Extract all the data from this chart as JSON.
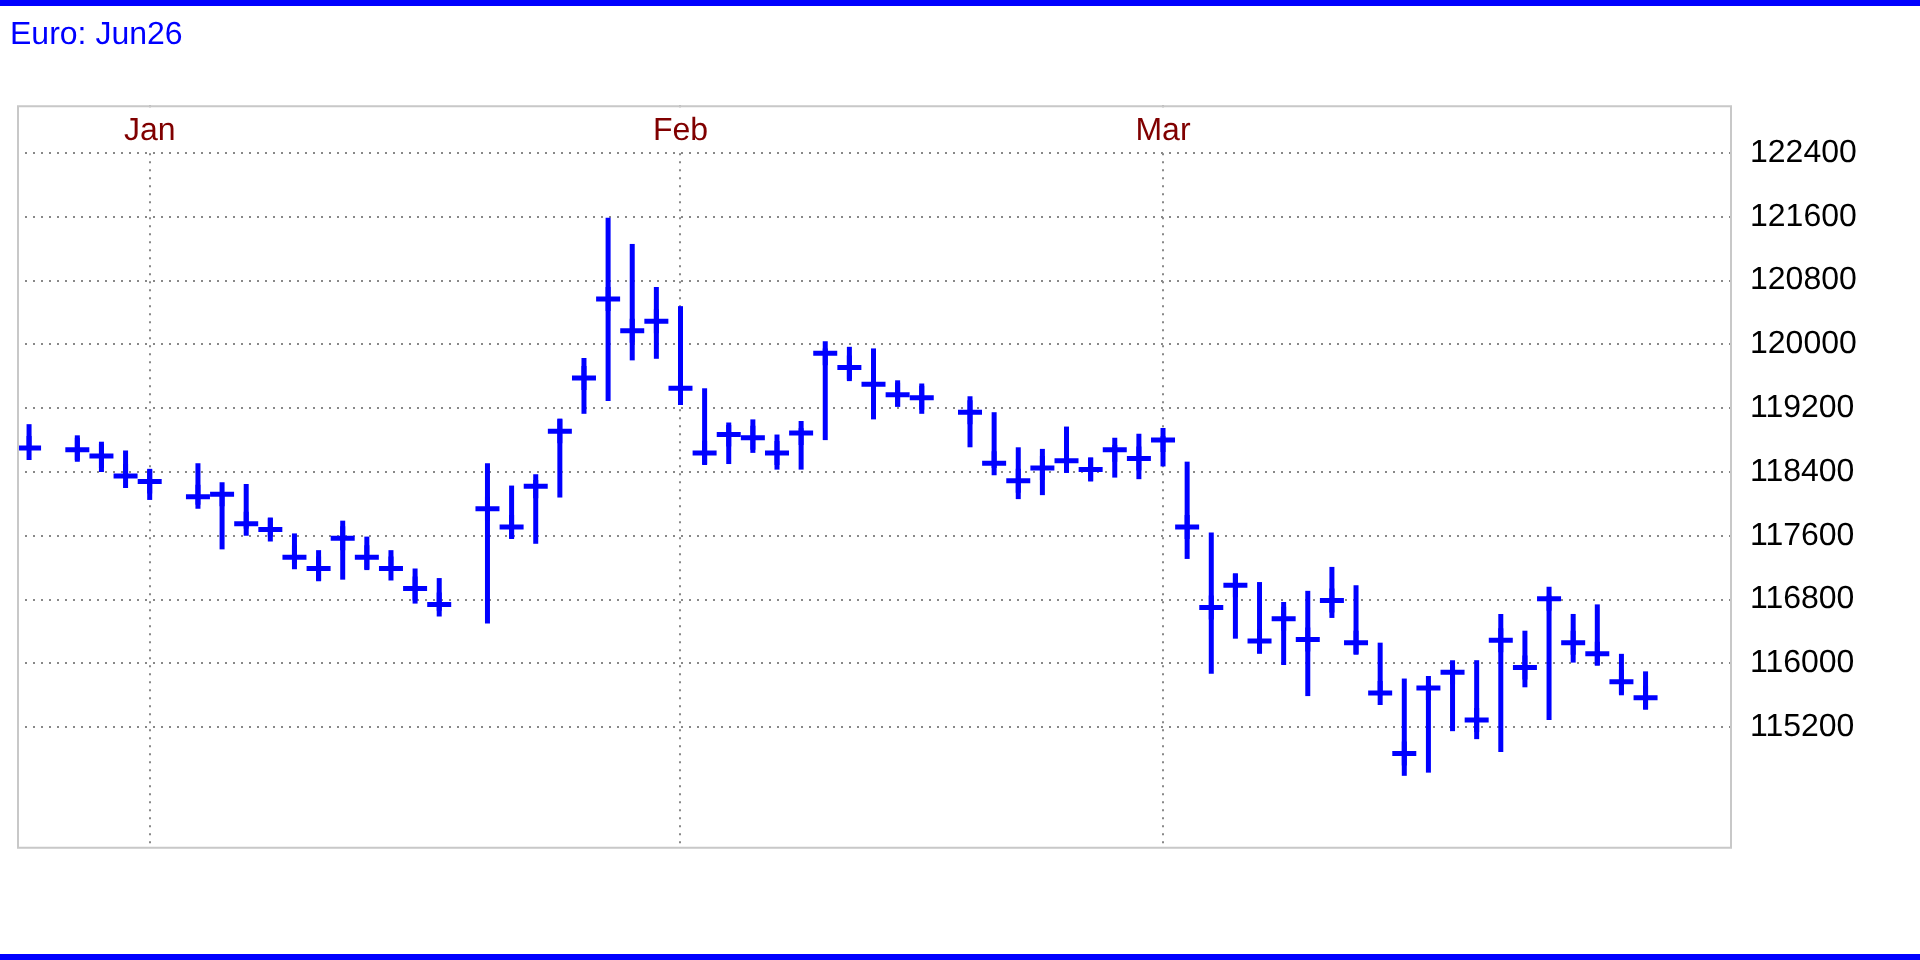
{
  "chart_data": {
    "type": "scatter",
    "title": "Euro: Jun26",
    "grid": true,
    "marker": "cross",
    "color": "#0000ff",
    "categories": [
      null,
      null,
      null,
      null,
      null,
      "Jan",
      null,
      null,
      null,
      null,
      null,
      null,
      null,
      null,
      null,
      null,
      null,
      null,
      null,
      null,
      null,
      null,
      null,
      null,
      null,
      null,
      null,
      "Feb",
      null,
      null,
      null,
      null,
      null,
      null,
      null,
      null,
      null,
      null,
      null,
      null,
      null,
      null,
      null,
      null,
      null,
      null,
      null,
      "Mar",
      null,
      null,
      null,
      null,
      null,
      null,
      null,
      null,
      null,
      null,
      null,
      null,
      null,
      null,
      null,
      null,
      null,
      null,
      null,
      null,
      null,
      null,
      null
    ],
    "values": [
      118700,
      null,
      118680,
      118600,
      118350,
      118280,
      null,
      118090,
      118120,
      117750,
      117680,
      117330,
      117190,
      117570,
      117330,
      117190,
      116940,
      116740,
      null,
      117940,
      117710,
      118220,
      118910,
      119580,
      120570,
      120170,
      120290,
      119450,
      118640,
      118870,
      118830,
      118640,
      118890,
      119890,
      119710,
      119500,
      119370,
      119330,
      null,
      119150,
      118510,
      118290,
      118450,
      118540,
      118430,
      118680,
      118570,
      118800,
      117710,
      116700,
      116980,
      116280,
      116560,
      116300,
      116790,
      116260,
      115630,
      114870,
      115690,
      115890,
      115290,
      116290,
      115950,
      116810,
      116260,
      116120,
      115770,
      115570,
      null,
      null,
      null
    ],
    "errors": [
      [
        118690,
        119000
      ],
      null,
      [
        118550,
        118860
      ],
      [
        118400,
        118780
      ],
      [
        118350,
        118670
      ],
      [
        118050,
        118440
      ],
      null,
      [
        117990,
        118510
      ],
      [
        117430,
        118130
      ],
      [
        117690,
        118250
      ],
      [
        117590,
        117820
      ],
      [
        117260,
        117630
      ],
      [
        117030,
        117420
      ],
      [
        117050,
        117790
      ],
      [
        117170,
        117590
      ],
      [
        117190,
        117420
      ],
      [
        116750,
        117190
      ],
      [
        116660,
        117070
      ],
      null,
      [
        116500,
        118510
      ],
      [
        117570,
        118230
      ],
      [
        117500,
        118300
      ],
      [
        118080,
        119070
      ],
      [
        119130,
        119830
      ],
      [
        119290,
        121590
      ],
      [
        119800,
        121260
      ],
      [
        119820,
        120720
      ],
      [
        119240,
        120480
      ],
      [
        118500,
        119450
      ],
      [
        118500,
        118990
      ],
      [
        118640,
        119060
      ],
      [
        118430,
        118870
      ],
      [
        118430,
        118950
      ],
      [
        118800,
        119950
      ],
      [
        119540,
        119970
      ],
      [
        119060,
        119950
      ],
      [
        119220,
        119550
      ],
      [
        119130,
        119510
      ],
      null,
      [
        118710,
        119350
      ],
      [
        118450,
        119150
      ],
      [
        118060,
        118710
      ],
      [
        118110,
        118690
      ],
      [
        118390,
        118970
      ],
      [
        118290,
        118580
      ],
      [
        118330,
        118740
      ],
      [
        118310,
        118880
      ],
      [
        118470,
        118850
      ],
      [
        117310,
        118530
      ],
      [
        115870,
        117640
      ],
      [
        116310,
        117120
      ],
      [
        116120,
        117020
      ],
      [
        115980,
        116770
      ],
      [
        115590,
        116910
      ],
      [
        116570,
        117210
      ],
      [
        116120,
        116980
      ],
      [
        115600,
        116260
      ],
      [
        114590,
        115810
      ],
      [
        114630,
        115740
      ],
      [
        115150,
        115970
      ],
      [
        115050,
        116040
      ],
      [
        114890,
        116620
      ],
      [
        115700,
        116410
      ],
      [
        115290,
        116850
      ],
      [
        116010,
        116620
      ],
      [
        115980,
        116740
      ],
      [
        115600,
        116120
      ],
      [
        115430,
        115900
      ],
      null,
      null,
      null
    ],
    "ylim": [
      113700,
      123000
    ],
    "yticks": [
      115200,
      116000,
      116800,
      117600,
      118400,
      119200,
      120000,
      120800,
      121600,
      122400
    ]
  }
}
